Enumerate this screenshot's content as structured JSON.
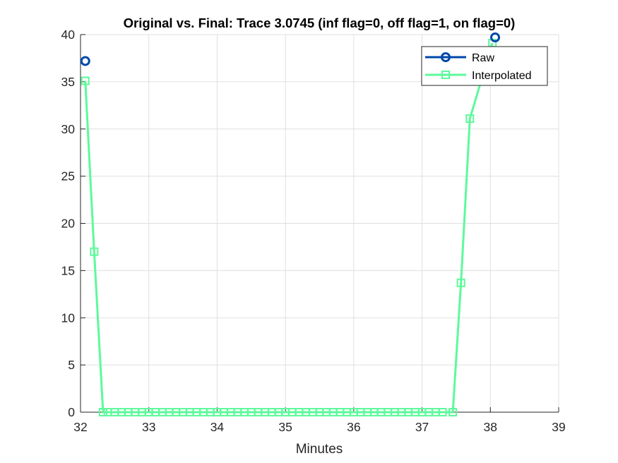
{
  "chart_data": {
    "type": "line",
    "title": "Original vs. Final: Trace 3.0745 (inf flag=0, off flag=1, on flag=0)",
    "xlabel": "Minutes",
    "ylabel": "",
    "xlim": [
      32,
      39
    ],
    "ylim": [
      0,
      40
    ],
    "xticks": [
      "32",
      "33",
      "34",
      "35",
      "36",
      "37",
      "38",
      "39"
    ],
    "yticks": [
      "0",
      "5",
      "10",
      "15",
      "20",
      "25",
      "30",
      "35",
      "40"
    ],
    "grid": true,
    "legend_position": "top-right",
    "colors": {
      "raw": "#0047ab",
      "interpolated": "#5cfa9a"
    },
    "series": [
      {
        "name": "Raw",
        "marker": "circle",
        "x": [
          32.07,
          38.07
        ],
        "y": [
          37.2,
          39.7
        ]
      },
      {
        "name": "Interpolated",
        "marker": "square",
        "x": [
          32.07,
          32.2,
          32.33,
          32.4,
          32.5,
          32.6,
          32.7,
          32.8,
          32.9,
          33.0,
          33.1,
          33.2,
          33.3,
          33.4,
          33.5,
          33.6,
          33.7,
          33.8,
          33.9,
          34.0,
          34.1,
          34.2,
          34.3,
          34.4,
          34.5,
          34.6,
          34.7,
          34.8,
          34.9,
          35.0,
          35.1,
          35.2,
          35.3,
          35.4,
          35.5,
          35.6,
          35.7,
          35.8,
          35.9,
          36.0,
          36.1,
          36.2,
          36.3,
          36.4,
          36.5,
          36.6,
          36.7,
          36.8,
          36.9,
          37.0,
          37.1,
          37.2,
          37.3,
          37.45,
          37.57,
          37.7,
          38.03
        ],
        "y": [
          35.1,
          17.0,
          0,
          0,
          0,
          0,
          0,
          0,
          0,
          0,
          0,
          0,
          0,
          0,
          0,
          0,
          0,
          0,
          0,
          0,
          0,
          0,
          0,
          0,
          0,
          0,
          0,
          0,
          0,
          0,
          0,
          0,
          0,
          0,
          0,
          0,
          0,
          0,
          0,
          0,
          0,
          0,
          0,
          0,
          0,
          0,
          0,
          0,
          0,
          0,
          0,
          0,
          0,
          0,
          13.7,
          31.1,
          39.1
        ]
      }
    ]
  }
}
